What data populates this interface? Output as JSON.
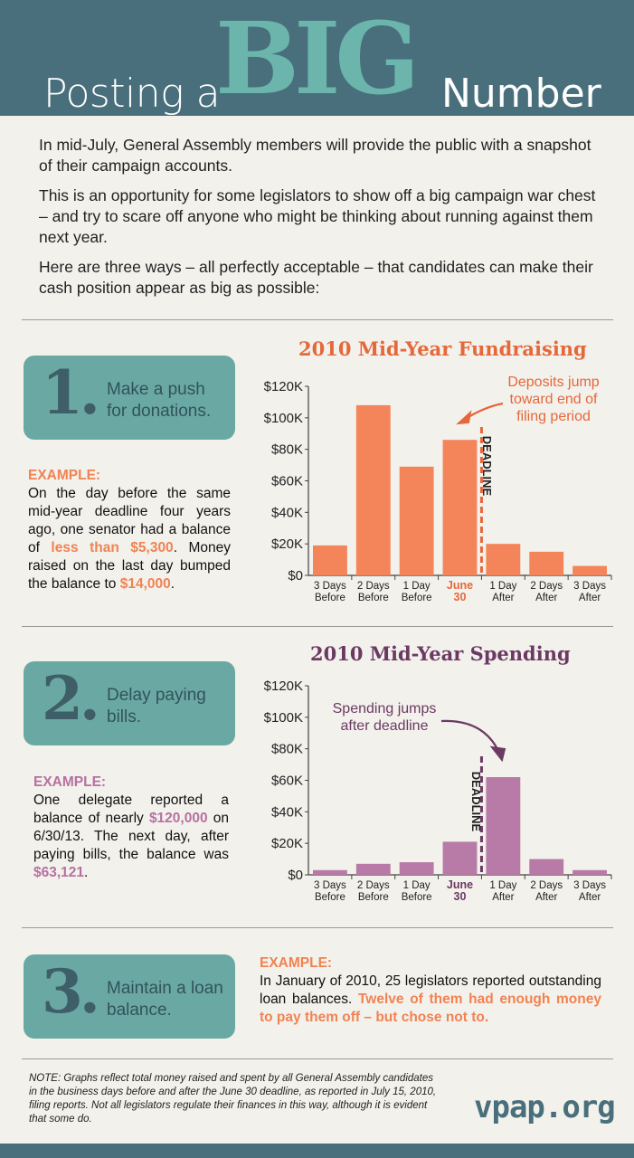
{
  "header": {
    "title_pre": "Posting a",
    "title_big": "BIG",
    "title_post": "Number"
  },
  "intro": {
    "p1": "In mid-July, General Assembly members will provide the public with a snapshot of their campaign accounts.",
    "p2": "This is an opportunity for some legislators to show off a big campaign war chest – and try to scare off anyone who might be thinking about running against them next year.",
    "p3": "Here are three ways – all perfectly acceptable – that candidates can make their cash position appear as big as possible:"
  },
  "sections": [
    {
      "number": "1.",
      "label": "Make a push for donations.",
      "example_head": "EXAMPLE:",
      "ex_t1": "On the day before the same mid-year deadline four years ago, one senator had a balance of ",
      "ex_h1": "less than $5,300",
      "ex_t2": ". Money raised on the last day bumped the balance to ",
      "ex_h2": "$14,000",
      "ex_t3": "."
    },
    {
      "number": "2.",
      "label": "Delay paying bills.",
      "example_head": "EXAMPLE:",
      "ex_t1": "One delegate reported a balance of nearly ",
      "ex_h1": "$120,000",
      "ex_t2": " on 6/30/13. The next day, after paying bills, the balance was ",
      "ex_h2": "$63,121",
      "ex_t3": "."
    },
    {
      "number": "3.",
      "label": "Maintain a loan balance.",
      "example_head": "EXAMPLE:",
      "ex_t1": "In January of 2010, 25 legislators reported outstanding loan balances. ",
      "ex_h1": "Twelve of them had enough money to pay them off – but chose not to."
    }
  ],
  "colors": {
    "fundraising": "#f4845a",
    "fundraising_text": "#e5683a",
    "spending": "#b87aa6",
    "spending_text": "#6b3a63",
    "axis": "#333333"
  },
  "chart_data": [
    {
      "type": "bar",
      "title": "2010 Mid-Year Fundraising",
      "categories": [
        "3 Days\nBefore",
        "2 Days\nBefore",
        "1 Day\nBefore",
        "June\n30",
        "1 Day\nAfter",
        "2 Days\nAfter",
        "3 Days\nAfter"
      ],
      "values": [
        19000,
        108000,
        69000,
        86000,
        20000,
        15000,
        6000
      ],
      "yticks": [
        "$0",
        "$20K",
        "$40K",
        "$60K",
        "$80K",
        "$100K",
        "$120K"
      ],
      "ylim": [
        0,
        120000
      ],
      "deadline_label": "DEADLINE",
      "annotation": "Deposits jump\ntoward end of\nfiling period",
      "xlabel": "",
      "ylabel": ""
    },
    {
      "type": "bar",
      "title": "2010 Mid-Year Spending",
      "categories": [
        "3 Days\nBefore",
        "2 Days\nBefore",
        "1 Day\nBefore",
        "June\n30",
        "1 Day\nAfter",
        "2 Days\nAfter",
        "3 Days\nAfter"
      ],
      "values": [
        3000,
        7000,
        8000,
        21000,
        62000,
        10000,
        3000
      ],
      "yticks": [
        "$0",
        "$20K",
        "$40K",
        "$60K",
        "$80K",
        "$100K",
        "$120K"
      ],
      "ylim": [
        0,
        120000
      ],
      "deadline_label": "DEADLINE",
      "annotation": "Spending jumps\nafter deadline",
      "xlabel": "",
      "ylabel": ""
    }
  ],
  "footer": {
    "note": "NOTE: Graphs reflect total money raised and spent by all General Assembly candidates in the business days before and after the June 30 deadline, as reported in July 15, 2010, filing reports. Not all legislators regulate their finances in this way, although it is evident that some do.",
    "logo": "vpap.org"
  }
}
